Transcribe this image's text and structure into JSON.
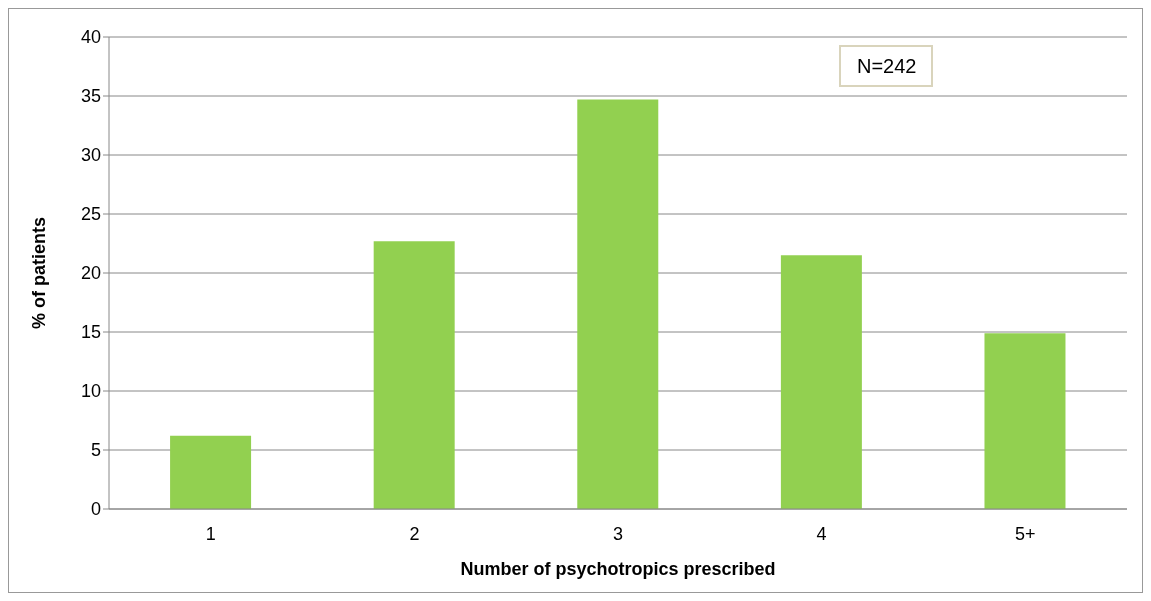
{
  "chart_data": {
    "type": "bar",
    "xlabel": "Number of psychotropics prescribed",
    "ylabel": "% of patients",
    "categories": [
      "1",
      "2",
      "3",
      "4",
      "5+"
    ],
    "values": [
      6.2,
      22.7,
      34.7,
      21.5,
      14.9
    ],
    "color": "#92d050",
    "ylim": [
      0,
      40
    ],
    "yticks": [
      0,
      5,
      10,
      15,
      20,
      25,
      30,
      35,
      40
    ],
    "grid": "y",
    "annotations": [
      "N=242"
    ]
  }
}
